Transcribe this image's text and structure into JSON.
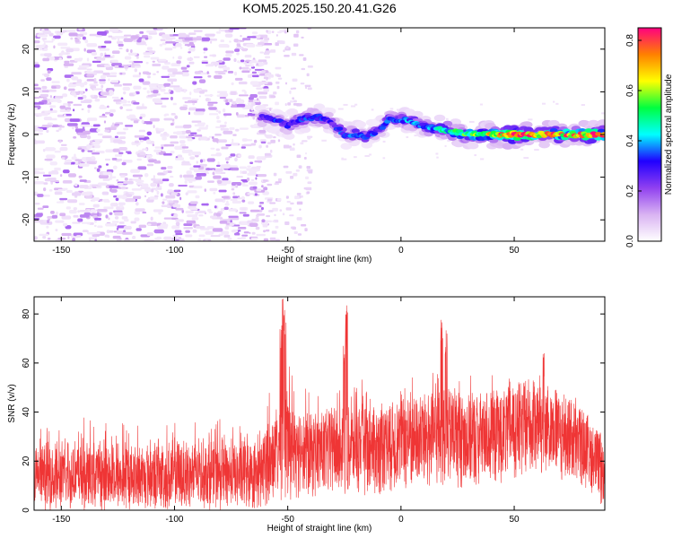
{
  "figure": {
    "title": "KOM5.2025.150.20.41.G26"
  },
  "colors": {
    "snr_line": "#ef3535",
    "frame": "#000000",
    "colormap": [
      "#ffffff",
      "#d9b3f2",
      "#9040f0",
      "#2000ff",
      "#00ffff",
      "#00ff40",
      "#ffff00",
      "#ff8000",
      "#ff0080"
    ]
  },
  "chart_data": [
    {
      "type": "heatmap",
      "title": "KOM5.2025.150.20.41.G26",
      "xlabel": "Height of straight line (km)",
      "ylabel": "Frequency (Hz)",
      "xlim": [
        -162,
        90
      ],
      "ylim": [
        -25,
        25
      ],
      "x_ticks": [
        "-150",
        "-100",
        "-50",
        "0",
        "50"
      ],
      "y_ticks": [
        "-20",
        "-10",
        "0",
        "10",
        "20"
      ],
      "colorbar": {
        "label": "Normalized spectral amplitude",
        "range": [
          0,
          0.85
        ],
        "ticks": [
          "0.0",
          "0.2",
          "0.4",
          "0.6",
          "0.8"
        ]
      },
      "ridge": {
        "description_points": [
          {
            "x": -62,
            "freq": 4.0,
            "amp": 0.25
          },
          {
            "x": -55,
            "freq": 3.5,
            "amp": 0.3
          },
          {
            "x": -50,
            "freq": 2.0,
            "amp": 0.28
          },
          {
            "x": -45,
            "freq": 3.5,
            "amp": 0.3
          },
          {
            "x": -40,
            "freq": 4.0,
            "amp": 0.32
          },
          {
            "x": -35,
            "freq": 4.0,
            "amp": 0.3
          },
          {
            "x": -30,
            "freq": 2.5,
            "amp": 0.28
          },
          {
            "x": -25,
            "freq": 0.0,
            "amp": 0.32
          },
          {
            "x": -20,
            "freq": 0.0,
            "amp": 0.38
          },
          {
            "x": -15,
            "freq": -0.5,
            "amp": 0.32
          },
          {
            "x": -10,
            "freq": 1.0,
            "amp": 0.3
          },
          {
            "x": -5,
            "freq": 3.5,
            "amp": 0.34
          },
          {
            "x": 0,
            "freq": 3.5,
            "amp": 0.38
          },
          {
            "x": 5,
            "freq": 3.0,
            "amp": 0.36
          },
          {
            "x": 10,
            "freq": 2.0,
            "amp": 0.36
          },
          {
            "x": 15,
            "freq": 1.5,
            "amp": 0.42
          },
          {
            "x": 20,
            "freq": 1.0,
            "amp": 0.45
          },
          {
            "x": 25,
            "freq": 0.5,
            "amp": 0.5
          },
          {
            "x": 30,
            "freq": 0.0,
            "amp": 0.55
          },
          {
            "x": 35,
            "freq": 0.0,
            "amp": 0.6
          },
          {
            "x": 40,
            "freq": 0.0,
            "amp": 0.65
          },
          {
            "x": 45,
            "freq": 0.0,
            "amp": 0.7
          },
          {
            "x": 50,
            "freq": 0.0,
            "amp": 0.85
          },
          {
            "x": 55,
            "freq": 0.0,
            "amp": 0.75
          },
          {
            "x": 60,
            "freq": 0.0,
            "amp": 0.7
          },
          {
            "x": 65,
            "freq": 0.0,
            "amp": 0.72
          },
          {
            "x": 70,
            "freq": 0.0,
            "amp": 0.68
          },
          {
            "x": 75,
            "freq": 0.0,
            "amp": 0.72
          },
          {
            "x": 80,
            "freq": 0.0,
            "amp": 0.7
          },
          {
            "x": 85,
            "freq": 0.0,
            "amp": 0.75
          },
          {
            "x": 90,
            "freq": 0.0,
            "amp": 0.7
          }
        ]
      }
    },
    {
      "type": "line",
      "xlabel": "Height of straight line (km)",
      "ylabel": "SNR (v/v)",
      "xlim": [
        -162,
        90
      ],
      "ylim": [
        0,
        87
      ],
      "x_ticks": [
        "-150",
        "-100",
        "-50",
        "0",
        "50"
      ],
      "y_ticks": [
        "0",
        "20",
        "40",
        "60",
        "80"
      ],
      "envelope": [
        {
          "x": -162,
          "low": 0,
          "mean": 12,
          "high": 34
        },
        {
          "x": -140,
          "low": 0,
          "mean": 13,
          "high": 38
        },
        {
          "x": -120,
          "low": 0,
          "mean": 13,
          "high": 36
        },
        {
          "x": -100,
          "low": 0,
          "mean": 13,
          "high": 36
        },
        {
          "x": -80,
          "low": 0,
          "mean": 14,
          "high": 38
        },
        {
          "x": -62,
          "low": 0,
          "mean": 15,
          "high": 34
        },
        {
          "x": -58,
          "low": 3,
          "mean": 20,
          "high": 52
        },
        {
          "x": -50,
          "low": 4,
          "mean": 26,
          "high": 60
        },
        {
          "x": -40,
          "low": 5,
          "mean": 24,
          "high": 48
        },
        {
          "x": -30,
          "low": 5,
          "mean": 25,
          "high": 48
        },
        {
          "x": -24,
          "low": 6,
          "mean": 26,
          "high": 55
        },
        {
          "x": -10,
          "low": 6,
          "mean": 26,
          "high": 52
        },
        {
          "x": 0,
          "low": 8,
          "mean": 28,
          "high": 55
        },
        {
          "x": 10,
          "low": 8,
          "mean": 30,
          "high": 58
        },
        {
          "x": 20,
          "low": 10,
          "mean": 32,
          "high": 60
        },
        {
          "x": 30,
          "low": 8,
          "mean": 30,
          "high": 55
        },
        {
          "x": 40,
          "low": 10,
          "mean": 32,
          "high": 55
        },
        {
          "x": 50,
          "low": 12,
          "mean": 34,
          "high": 56
        },
        {
          "x": 60,
          "low": 15,
          "mean": 36,
          "high": 60
        },
        {
          "x": 70,
          "low": 12,
          "mean": 33,
          "high": 52
        },
        {
          "x": 80,
          "low": 10,
          "mean": 28,
          "high": 45
        },
        {
          "x": 88,
          "low": 2,
          "mean": 18,
          "high": 38
        },
        {
          "x": 90,
          "low": 0,
          "mean": 12,
          "high": 30
        }
      ],
      "spikes": [
        {
          "x": -52,
          "value": 87
        },
        {
          "x": -51,
          "value": 84
        },
        {
          "x": -53,
          "value": 76
        },
        {
          "x": -24,
          "value": 85
        },
        {
          "x": -25,
          "value": 70
        },
        {
          "x": 18,
          "value": 78
        },
        {
          "x": 20,
          "value": 74
        },
        {
          "x": 63,
          "value": 64
        }
      ]
    }
  ]
}
